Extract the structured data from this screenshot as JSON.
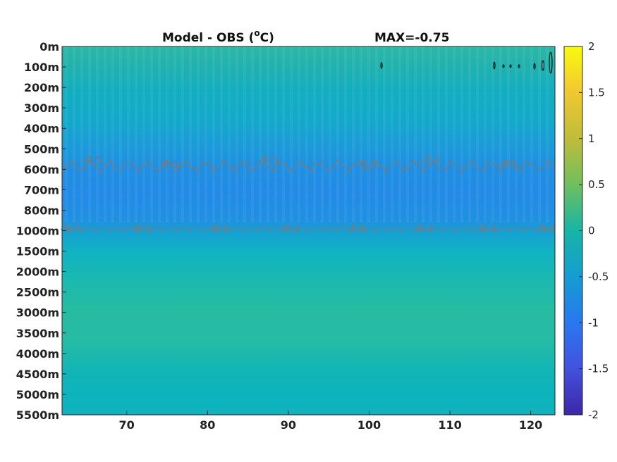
{
  "chart_data": {
    "type": "heatmap",
    "title": "Model - OBS (°C)",
    "title_main": "Model - OBS (",
    "title_degree": "o",
    "title_unit": "C)",
    "annotation": "MAX=-0.75",
    "x_ticks": [
      70,
      80,
      90,
      100,
      110,
      120
    ],
    "xlim": [
      62,
      123
    ],
    "y_tick_labels": [
      "0m",
      "100m",
      "200m",
      "300m",
      "400m",
      "500m",
      "600m",
      "700m",
      "800m",
      "1000m",
      "1500m",
      "2000m",
      "2500m",
      "3000m",
      "3500m",
      "4000m",
      "4500m",
      "5000m",
      "5500m"
    ],
    "y_direction": "downward",
    "colormap": "parula",
    "colorbar": {
      "ticks": [
        2,
        1.5,
        1,
        0.5,
        0,
        -0.5,
        -1,
        -1.5,
        -2
      ],
      "range": [
        -2,
        2
      ]
    },
    "contours": [
      {
        "level": -0.5,
        "label": "-0.5",
        "depth_band": "500m-600m"
      },
      {
        "level": -0.5,
        "label": "-0.5",
        "depth": "1000m"
      }
    ],
    "depth_profile": [
      {
        "depth": "0m",
        "value": 0.05
      },
      {
        "depth": "100m",
        "value": 0.0
      },
      {
        "depth": "200m",
        "value": -0.15
      },
      {
        "depth": "300m",
        "value": -0.3
      },
      {
        "depth": "400m",
        "value": -0.45
      },
      {
        "depth": "500m",
        "value": -0.6
      },
      {
        "depth": "600m",
        "value": -0.75
      },
      {
        "depth": "700m",
        "value": -0.8
      },
      {
        "depth": "800m",
        "value": -0.75
      },
      {
        "depth": "1000m",
        "value": -0.5
      },
      {
        "depth": "1500m",
        "value": -0.2
      },
      {
        "depth": "2000m",
        "value": 0.05
      },
      {
        "depth": "2500m",
        "value": 0.15
      },
      {
        "depth": "3000m",
        "value": 0.18
      },
      {
        "depth": "3500m",
        "value": 0.18
      },
      {
        "depth": "4000m",
        "value": 0.12
      },
      {
        "depth": "4500m",
        "value": 0.0
      },
      {
        "depth": "5000m",
        "value": -0.05
      },
      {
        "depth": "5500m",
        "value": -0.1
      }
    ]
  }
}
